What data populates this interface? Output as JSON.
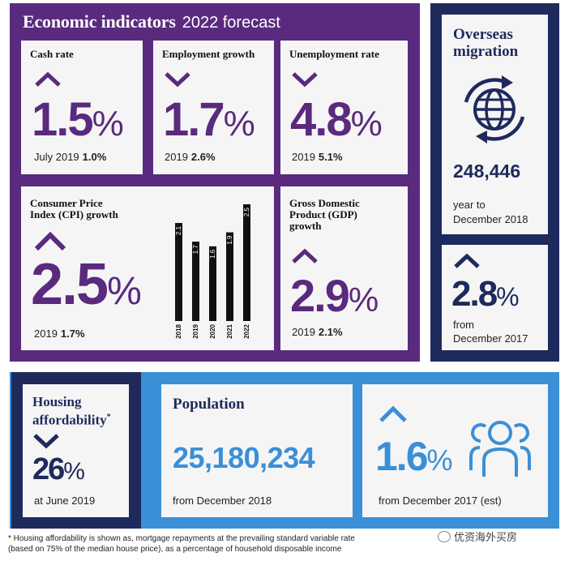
{
  "economic": {
    "title": "Economic indicators",
    "subtitle": "2022 forecast",
    "cash": {
      "title": "Cash rate",
      "value": "1.5",
      "pct": "%",
      "note": "July 2019",
      "note_val": "1.0%"
    },
    "employment": {
      "title": "Employment growth",
      "value": "1.7",
      "pct": "%",
      "note": "2019",
      "note_val": "2.6%"
    },
    "unemployment": {
      "title": "Unemployment rate",
      "value": "4.8",
      "pct": "%",
      "note": "2019",
      "note_val": "5.1%"
    },
    "cpi": {
      "title_l1": "Consumer Price",
      "title_l2": "Index (CPI) growth",
      "value": "2.5",
      "pct": "%",
      "note": "2019",
      "note_val": "1.7%"
    },
    "gdp": {
      "title_l1": "Gross Domestic",
      "title_l2": "Product (GDP)",
      "title_l3": "growth",
      "value": "2.9",
      "pct": "%",
      "note": "2019",
      "note_val": "2.1%"
    }
  },
  "chart_data": {
    "type": "bar",
    "categories": [
      "2018",
      "2019",
      "2020",
      "2021",
      "2022"
    ],
    "values": [
      2.1,
      1.7,
      1.6,
      1.9,
      2.5
    ],
    "labels": [
      "2.1",
      "1.7",
      "1.6",
      "1.9",
      "2.5"
    ],
    "ylim": [
      0,
      2.5
    ]
  },
  "migration": {
    "title_l1": "Overseas",
    "title_l2": "migration",
    "value": "248,446",
    "note_l1": "year to",
    "note_l2": "December 2018",
    "growth": "2.8",
    "pct": "%",
    "growth_note_l1": "from",
    "growth_note_l2": "December 2017",
    "icon": "globe-cycle-icon"
  },
  "housing": {
    "title_l1": "Housing",
    "title_l2": "affordability",
    "star": "*",
    "value": "26",
    "pct": "%",
    "note": "at June 2019"
  },
  "population": {
    "title": "Population",
    "value": "25,180,234",
    "note": "from December 2018"
  },
  "pop_growth": {
    "value": "1.6",
    "pct": "%",
    "note": "from December 2017 (est)",
    "icon": "people-group-icon"
  },
  "footnote": {
    "line1": "* Housing affordability is shown as, mortgage repayments at the prevailing standard variable rate",
    "line2": "(based on 75% of the median house price), as a percentage of household disposable income"
  },
  "watermark": "优资海外买房",
  "colors": {
    "purple": "#5a2a7e",
    "navy": "#1f2a5c",
    "blue": "#3b8fd6",
    "card": "#f5f5f5"
  }
}
